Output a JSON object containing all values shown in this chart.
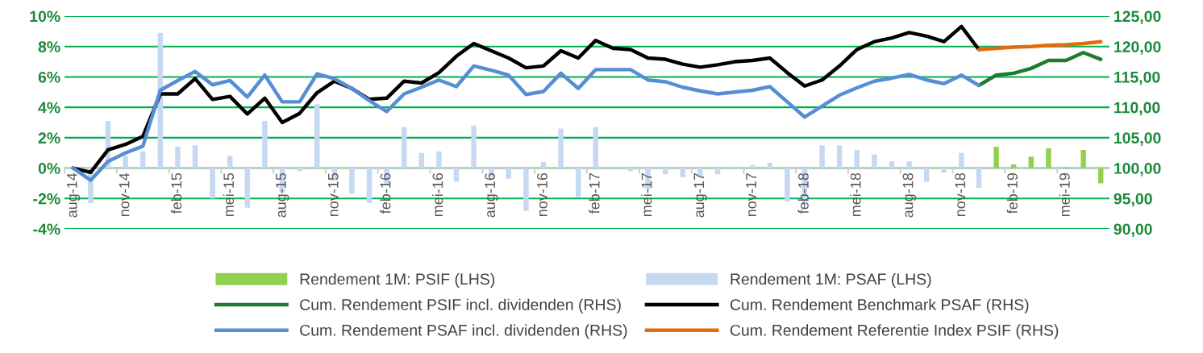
{
  "chart_data": {
    "type": "bar",
    "categories": [
      "aug-14",
      null,
      null,
      "nov-14",
      null,
      null,
      "feb-15",
      null,
      null,
      "mei-15",
      null,
      null,
      "aug-15",
      null,
      null,
      "nov-15",
      null,
      null,
      "feb-16",
      null,
      null,
      "mei-16",
      null,
      null,
      "aug-16",
      null,
      null,
      "nov-16",
      null,
      null,
      "feb-17",
      null,
      null,
      "mei-17",
      null,
      null,
      "aug-17",
      null,
      null,
      "nov-17",
      null,
      null,
      "feb-18",
      null,
      null,
      "mei-18",
      null,
      null,
      "aug-18",
      null,
      null,
      "nov-18",
      null,
      null,
      "feb-19",
      null,
      null,
      "mei-19",
      null,
      null
    ],
    "series": [
      {
        "name": "Rendement 1M: PSIF (LHS)",
        "color": "#92d050",
        "values": [
          null,
          null,
          null,
          null,
          null,
          null,
          null,
          null,
          null,
          null,
          null,
          null,
          null,
          null,
          null,
          null,
          null,
          null,
          null,
          null,
          null,
          null,
          null,
          null,
          null,
          null,
          null,
          null,
          null,
          null,
          null,
          null,
          null,
          null,
          null,
          null,
          null,
          null,
          null,
          null,
          null,
          null,
          null,
          null,
          null,
          null,
          null,
          null,
          null,
          null,
          null,
          null,
          null,
          1.4,
          0.25,
          0.75,
          1.3,
          0.05,
          1.2,
          -1.0
        ]
      },
      {
        "name": "Rendement 1M: PSAF (LHS)",
        "color": "#c5d9f1",
        "values": [
          null,
          -2.3,
          3.1,
          0.8,
          1.1,
          8.9,
          1.4,
          1.5,
          -2.0,
          0.8,
          -2.6,
          3.1,
          -1.6,
          -0.2,
          4.2,
          -0.8,
          -1.7,
          -2.3,
          -1.0,
          2.7,
          1.0,
          1.1,
          -0.9,
          2.8,
          -0.6,
          -0.7,
          -2.8,
          0.4,
          2.6,
          -1.9,
          2.7,
          null,
          -0.2,
          -1.4,
          -0.4,
          -0.6,
          -0.5,
          -0.4,
          0.1,
          0.2,
          0.35,
          -2.2,
          -2.4,
          1.5,
          1.5,
          1.2,
          0.9,
          0.45,
          0.45,
          -0.9,
          -0.3,
          1.0,
          -1.3,
          null,
          null,
          null,
          null,
          null,
          null,
          null
        ]
      },
      {
        "name": "Cum. Rendement PSIF incl. dividenden (RHS)",
        "type": "line",
        "axis": "y2",
        "color": "#1e7a2e",
        "values": [
          null,
          null,
          null,
          null,
          null,
          null,
          null,
          null,
          null,
          null,
          null,
          null,
          null,
          null,
          null,
          null,
          null,
          null,
          null,
          null,
          null,
          null,
          null,
          null,
          null,
          null,
          null,
          null,
          null,
          null,
          null,
          null,
          null,
          null,
          null,
          null,
          null,
          null,
          null,
          null,
          null,
          null,
          null,
          null,
          null,
          null,
          null,
          null,
          null,
          null,
          null,
          null,
          113.6,
          115.3,
          115.6,
          116.4,
          117.7,
          117.7,
          119.0,
          117.9
        ]
      },
      {
        "name": "Cum. Rendement Benchmark PSAF (RHS)",
        "type": "line",
        "axis": "y2",
        "color": "#000000",
        "values": [
          100.0,
          99.3,
          103.0,
          103.9,
          105.2,
          112.2,
          112.2,
          114.7,
          111.3,
          111.8,
          108.9,
          111.5,
          107.5,
          109.0,
          112.4,
          114.3,
          113.1,
          111.3,
          111.5,
          114.3,
          114.0,
          115.7,
          118.4,
          120.5,
          119.3,
          118.1,
          116.5,
          116.8,
          119.3,
          118.1,
          121.0,
          119.7,
          119.5,
          118.1,
          117.9,
          117.1,
          116.6,
          117.0,
          117.5,
          117.7,
          118.1,
          115.7,
          113.5,
          114.5,
          116.8,
          119.5,
          120.8,
          121.4,
          122.3,
          121.7,
          120.8,
          123.3,
          119.5,
          null,
          null,
          null,
          null,
          null,
          null,
          null
        ]
      },
      {
        "name": "Cum. Rendement PSAF incl. dividenden (RHS)",
        "type": "line",
        "axis": "y2",
        "color": "#558ed5",
        "values": [
          100.0,
          98.0,
          101.1,
          102.5,
          103.6,
          112.8,
          114.4,
          115.9,
          113.7,
          114.4,
          111.7,
          115.3,
          110.9,
          110.9,
          115.5,
          114.7,
          113.1,
          111.1,
          109.3,
          112.2,
          113.3,
          114.5,
          113.4,
          116.8,
          116.1,
          115.3,
          112.1,
          112.6,
          115.6,
          113.1,
          116.2,
          116.2,
          116.2,
          114.5,
          114.2,
          113.3,
          112.7,
          112.2,
          112.5,
          112.8,
          113.4,
          110.9,
          108.4,
          110.2,
          112.0,
          113.2,
          114.3,
          114.8,
          115.4,
          114.5,
          113.9,
          115.3,
          113.6,
          null,
          null,
          null,
          null,
          null,
          null,
          null
        ]
      },
      {
        "name": "Cum. Rendement Referentie Index PSIF (RHS)",
        "type": "line",
        "axis": "y2",
        "color": "#e36c0a",
        "values": [
          null,
          null,
          null,
          null,
          null,
          null,
          null,
          null,
          null,
          null,
          null,
          null,
          null,
          null,
          null,
          null,
          null,
          null,
          null,
          null,
          null,
          null,
          null,
          null,
          null,
          null,
          null,
          null,
          null,
          null,
          null,
          null,
          null,
          null,
          null,
          null,
          null,
          null,
          null,
          null,
          null,
          null,
          null,
          null,
          null,
          null,
          null,
          null,
          null,
          null,
          null,
          null,
          119.5,
          119.7,
          119.9,
          120.0,
          120.2,
          120.3,
          120.5,
          120.8
        ]
      }
    ],
    "ylim": [
      -4,
      10
    ],
    "yticks": [
      {
        "value": -4,
        "label": "-4%"
      },
      {
        "value": -2,
        "label": "-2%"
      },
      {
        "value": 0,
        "label": "0%"
      },
      {
        "value": 2,
        "label": "2%"
      },
      {
        "value": 4,
        "label": "4%"
      },
      {
        "value": 6,
        "label": "6%"
      },
      {
        "value": 8,
        "label": "8%"
      },
      {
        "value": 10,
        "label": "10%"
      }
    ],
    "y2lim": [
      90,
      125
    ],
    "y2ticks": [
      {
        "value": 90,
        "label": "90,00"
      },
      {
        "value": 95,
        "label": "95,00"
      },
      {
        "value": 100,
        "label": "100,00"
      },
      {
        "value": 105,
        "label": "105,00"
      },
      {
        "value": 110,
        "label": "110,00"
      },
      {
        "value": 115,
        "label": "115,00"
      },
      {
        "value": 120,
        "label": "120,00"
      },
      {
        "value": 125,
        "label": "125,00"
      }
    ],
    "grid": "y",
    "legend": "bottom"
  }
}
